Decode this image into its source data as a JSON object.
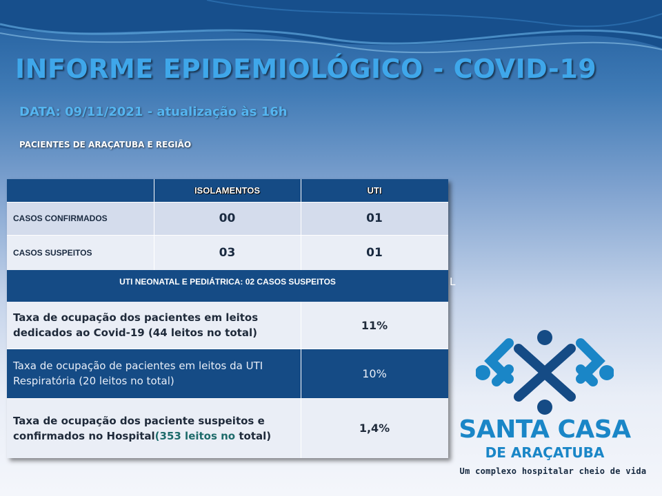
{
  "header": {
    "title": "INFORME EPIDEMIOLÓGICO - COVID-19",
    "date_line": "DATA: 09/11/2021 - atualização às  16h",
    "subtitle": "PACIENTES DE ARAÇATUBA E REGIÃO"
  },
  "table": {
    "columns": [
      "",
      "ISOLAMENTOS",
      "UTI"
    ],
    "rows": [
      {
        "label": "CASOS CONFIRMADOS",
        "isolamentos": "00",
        "uti": "01"
      },
      {
        "label": "CASOS SUSPEITOS",
        "isolamentos": "03",
        "uti": "01"
      }
    ],
    "band": "UTI NEONATAL E PEDIÁTRICA: 02 CASOS SUSPEITOS"
  },
  "occupancy": [
    {
      "label": "Taxa de ocupação dos  pacientes em leitos dedicados ao Covid-19 (44 leitos no total)",
      "value": "11%"
    },
    {
      "label": "Taxa de ocupação de pacientes em leitos da UTI Respiratória (20 leitos no total)",
      "value": "10%"
    },
    {
      "label_main": "Taxa de ocupação dos paciente suspeitos e confirmados no Hospital",
      "label_paren": "(",
      "label_highlight": "353 leitos no",
      "label_tail": "total)",
      "value": "1,4%"
    }
  ],
  "stray_char": "L",
  "brand": {
    "name": "SANTA CASA",
    "sub": "DE ARAÇATUBA",
    "tagline": "Um complexo hospitalar cheio de vida",
    "colors": {
      "primary": "#1a86c7",
      "dark": "#154b85"
    }
  }
}
